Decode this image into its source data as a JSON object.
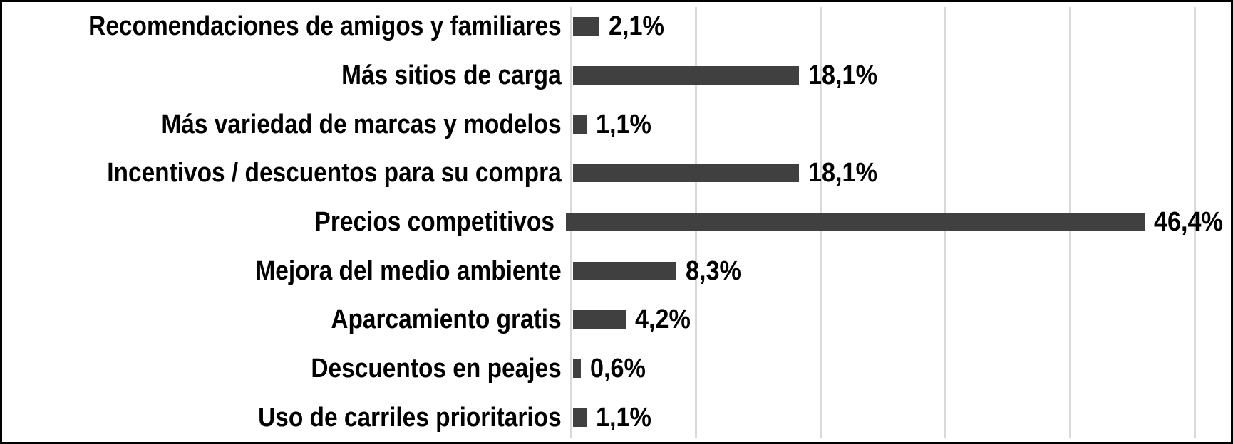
{
  "chart_data": {
    "type": "bar",
    "orientation": "horizontal",
    "title": "",
    "xlabel": "",
    "ylabel": "",
    "categories": [
      "Recomendaciones de amigos y familiares",
      "Más sitios de carga",
      "Más variedad de marcas y modelos",
      "Incentivos / descuentos para su compra",
      "Precios competitivos",
      "Mejora del medio ambiente",
      "Aparcamiento gratis",
      "Descuentos en peajes",
      "Uso de carriles prioritarios"
    ],
    "values": [
      2.1,
      18.1,
      1.1,
      18.1,
      46.4,
      8.3,
      4.2,
      0.6,
      1.1
    ],
    "value_labels": [
      "2,1%",
      "18,1%",
      "1,1%",
      "18,1%",
      "46,4%",
      "8,3%",
      "4,2%",
      "0,6%",
      "1,1%"
    ],
    "xlim": [
      0,
      50
    ],
    "gridline_step": 10,
    "grid": true,
    "legend": false,
    "colors": {
      "bar": "#404040",
      "gridline": "#D9D9D9",
      "text": "#000000",
      "frame_border": "#000000",
      "background": "#ffffff"
    }
  }
}
